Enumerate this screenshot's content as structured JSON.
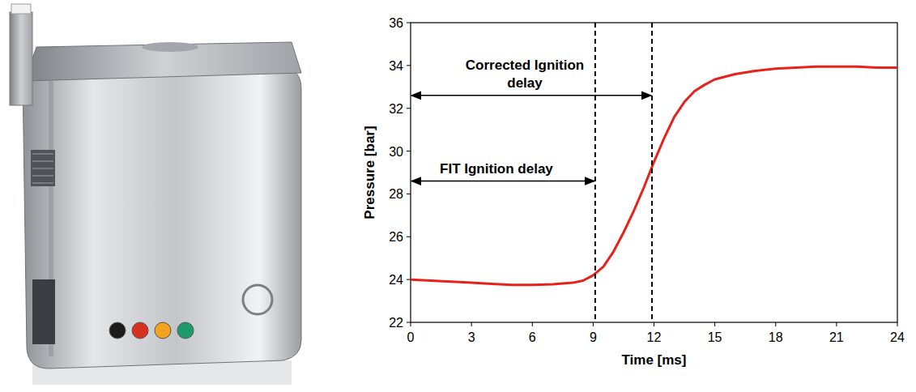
{
  "chart_data": {
    "type": "line",
    "x_label": "Time [ms]",
    "y_label": "Pressure [bar]",
    "x": [
      0,
      1,
      2,
      3,
      4,
      5,
      6,
      7,
      8,
      8.5,
      9,
      9.5,
      10,
      10.5,
      11,
      11.5,
      12,
      12.5,
      13,
      13.5,
      14,
      14.5,
      15,
      16,
      17,
      18,
      19,
      20,
      21,
      22,
      23,
      24
    ],
    "values": [
      24.0,
      23.95,
      23.9,
      23.85,
      23.8,
      23.75,
      23.75,
      23.78,
      23.85,
      23.95,
      24.2,
      24.6,
      25.3,
      26.2,
      27.2,
      28.3,
      29.5,
      30.6,
      31.6,
      32.3,
      32.8,
      33.1,
      33.35,
      33.6,
      33.75,
      33.85,
      33.9,
      33.95,
      33.95,
      33.95,
      33.9,
      33.9
    ],
    "color": "#e8221a",
    "xlim": [
      0,
      24
    ],
    "xticks": [
      0,
      3,
      6,
      9,
      12,
      15,
      18,
      21,
      24
    ],
    "ylim": [
      22,
      36
    ],
    "yticks": [
      22,
      24,
      26,
      28,
      30,
      32,
      34,
      36
    ],
    "grid": false,
    "annotations": [
      {
        "text": "Corrected Ignition delay",
        "x_start": 0,
        "x_end": 11.9,
        "y": 32.6
      },
      {
        "text": "FIT Ignition delay",
        "x_start": 0,
        "x_end": 9.1,
        "y": 28.6
      }
    ]
  }
}
